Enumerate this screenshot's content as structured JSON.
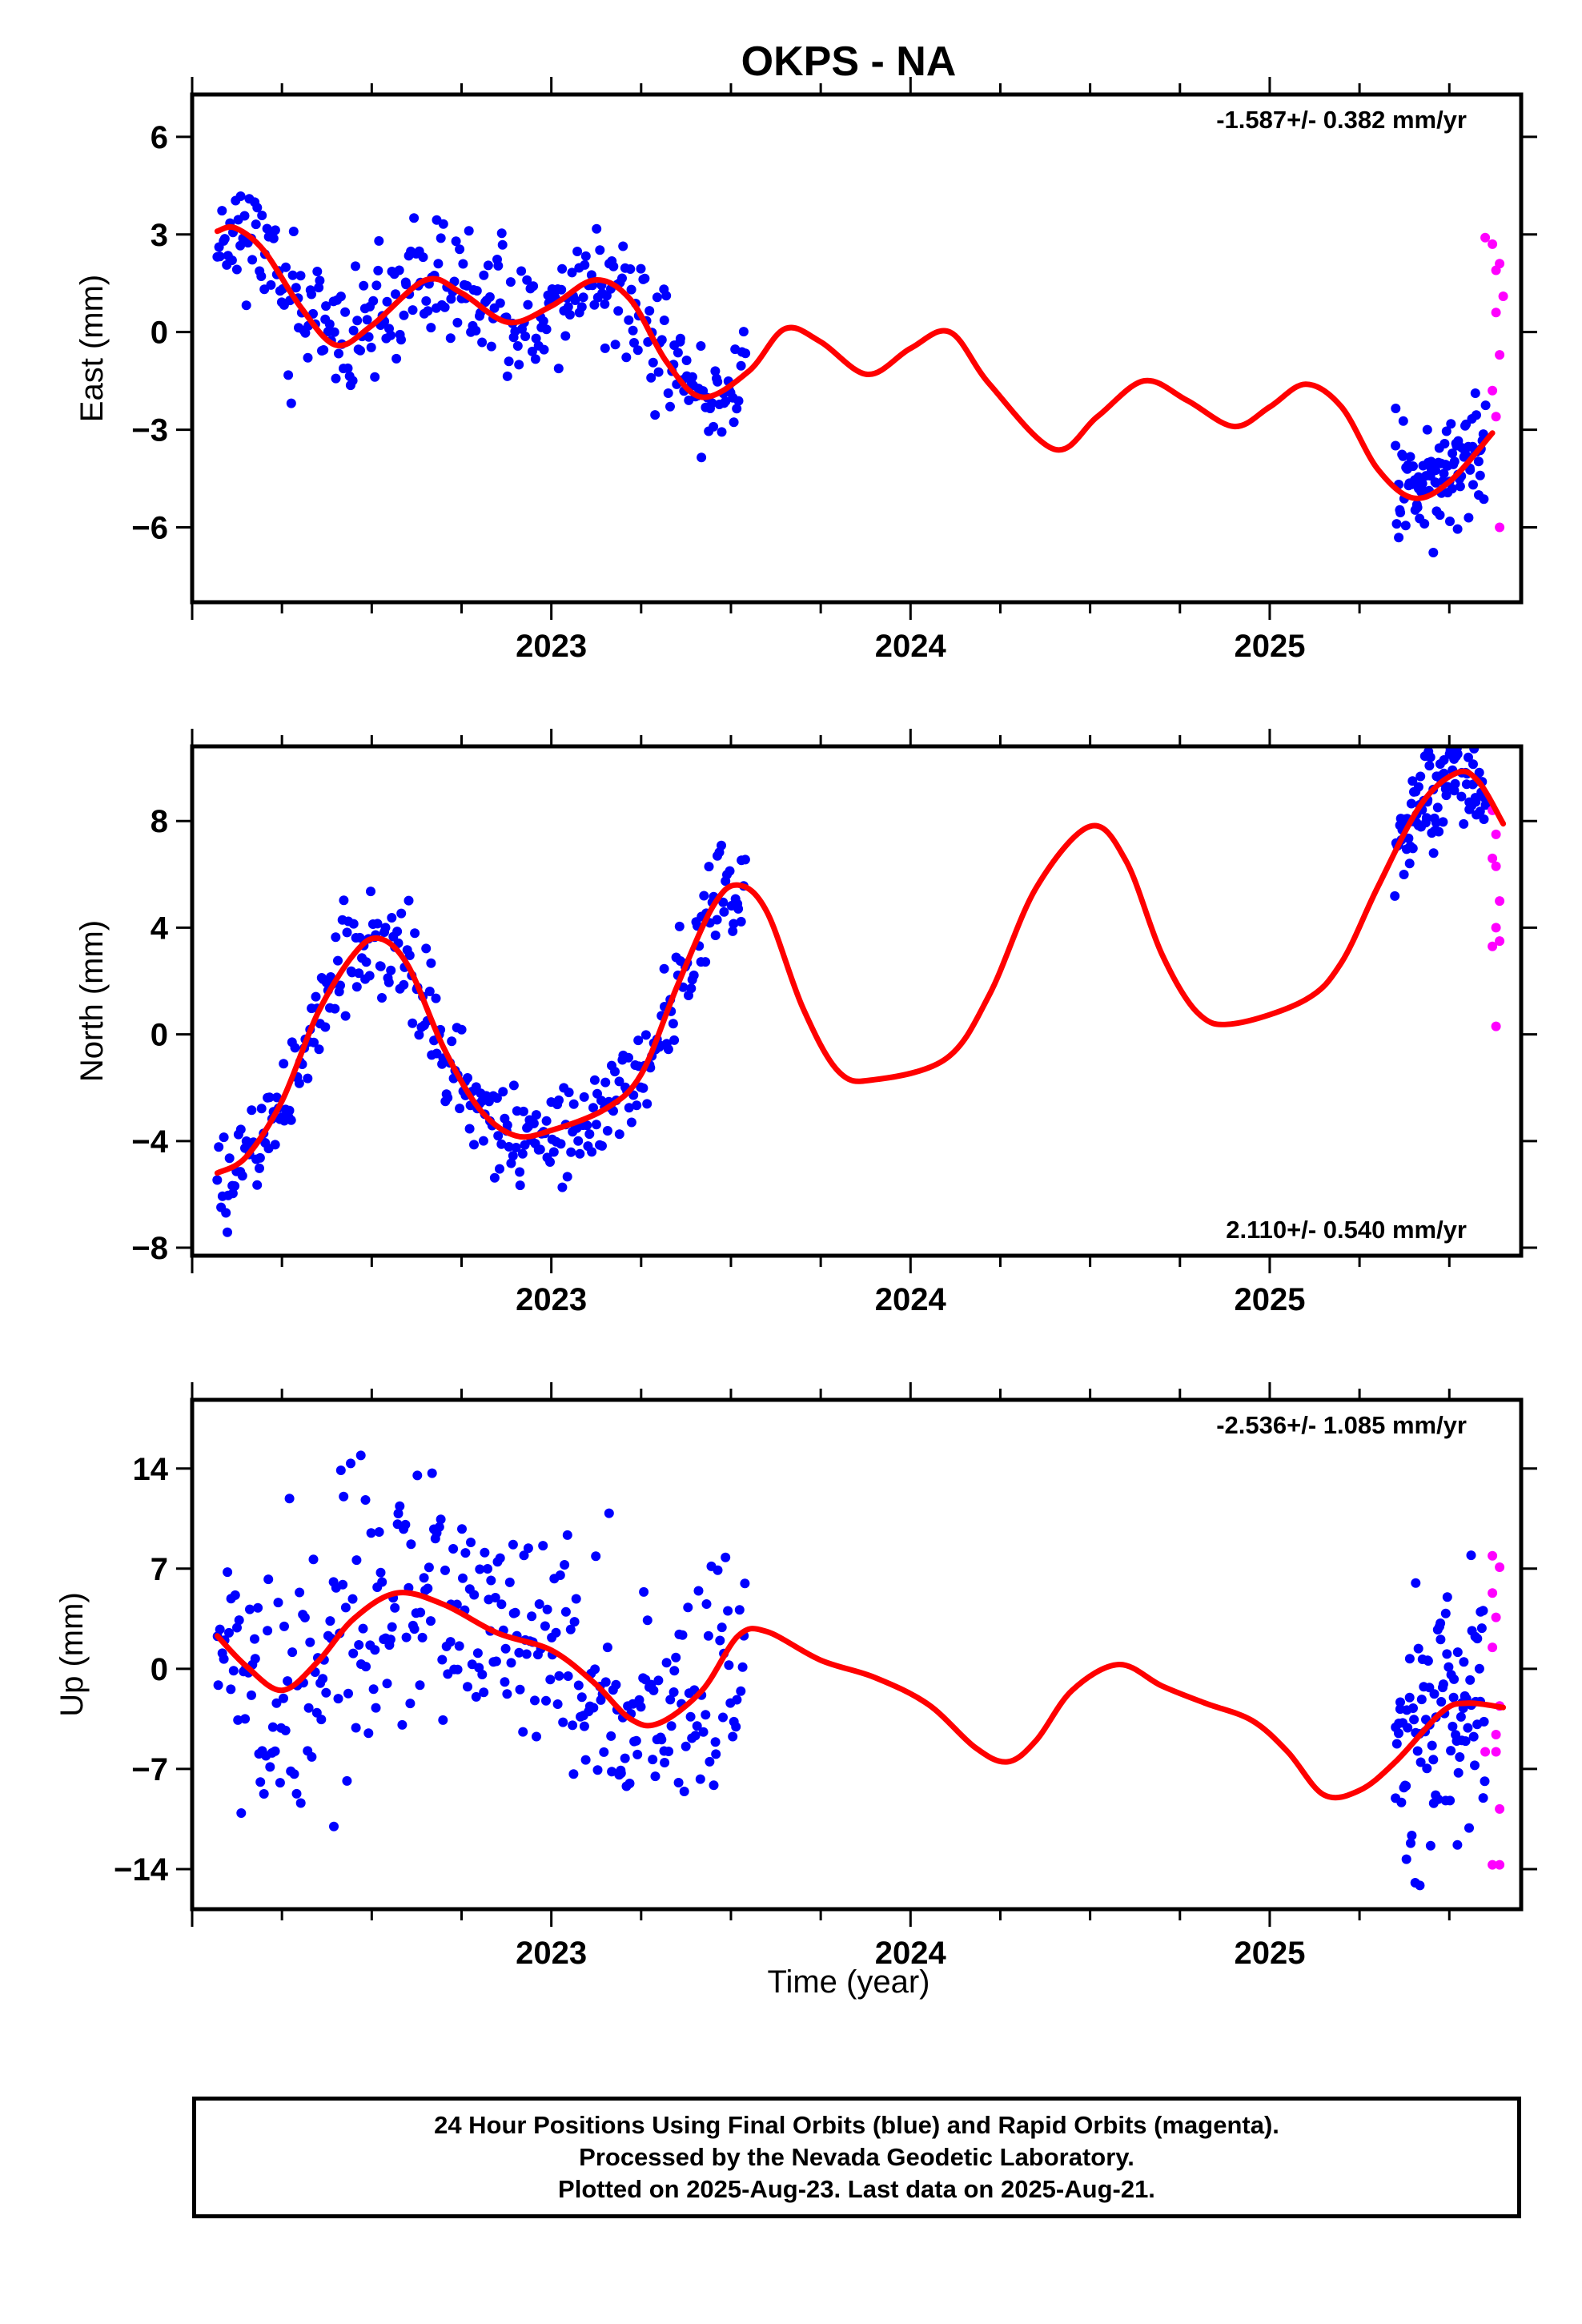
{
  "title": "OKPS - NA",
  "xlabel": "Time (year)",
  "footer": [
    "24 Hour Positions Using Final Orbits (blue) and Rapid Orbits (magenta).",
    "Processed by the Nevada Geodetic Laboratory.",
    "Plotted on 2025-Aug-23. Last data on 2025-Aug-21."
  ],
  "colors": {
    "final": "#0000ff",
    "rapid": "#ff00ff",
    "model": "#ff0000",
    "axis": "#000000"
  },
  "chart_data": [
    {
      "type": "scatter",
      "name": "East",
      "ylabel": "East (mm)",
      "rate": "-1.587+/- 0.382 mm/yr",
      "rate_position": "top-right",
      "xlim": [
        2022.0,
        2025.7
      ],
      "ylim": [
        -8.3,
        7.3
      ],
      "yticks": [
        -6,
        -3,
        0,
        3,
        6
      ],
      "xticks": [
        2023,
        2024,
        2025
      ],
      "final_segments": [
        {
          "x_start": 2022.07,
          "x_end": 2023.54,
          "n": 330,
          "spread": 0.9,
          "seed": 11
        },
        {
          "x_start": 2025.35,
          "x_end": 2025.6,
          "n": 100,
          "spread": 0.9,
          "seed": 13
        }
      ],
      "rapid_points": [
        {
          "x": 2025.6,
          "y": 2.9
        },
        {
          "x": 2025.62,
          "y": 2.7
        },
        {
          "x": 2025.63,
          "y": 1.9
        },
        {
          "x": 2025.64,
          "y": 2.1
        },
        {
          "x": 2025.65,
          "y": 1.1
        },
        {
          "x": 2025.63,
          "y": 0.6
        },
        {
          "x": 2025.64,
          "y": -0.7
        },
        {
          "x": 2025.62,
          "y": -1.8
        },
        {
          "x": 2025.63,
          "y": -2.6
        },
        {
          "x": 2025.64,
          "y": -6.0
        }
      ],
      "model": [
        {
          "x": 2022.07,
          "y": 3.1
        },
        {
          "x": 2022.12,
          "y": 3.2
        },
        {
          "x": 2022.2,
          "y": 2.5
        },
        {
          "x": 2022.3,
          "y": 0.8
        },
        {
          "x": 2022.4,
          "y": -0.4
        },
        {
          "x": 2022.5,
          "y": 0.2
        },
        {
          "x": 2022.65,
          "y": 1.6
        },
        {
          "x": 2022.75,
          "y": 1.2
        },
        {
          "x": 2022.88,
          "y": 0.3
        },
        {
          "x": 2023.0,
          "y": 0.8
        },
        {
          "x": 2023.12,
          "y": 1.6
        },
        {
          "x": 2023.22,
          "y": 1.0
        },
        {
          "x": 2023.32,
          "y": -0.9
        },
        {
          "x": 2023.42,
          "y": -2.0
        },
        {
          "x": 2023.55,
          "y": -1.2
        },
        {
          "x": 2023.65,
          "y": 0.1
        },
        {
          "x": 2023.75,
          "y": -0.3
        },
        {
          "x": 2023.88,
          "y": -1.3
        },
        {
          "x": 2024.0,
          "y": -0.5
        },
        {
          "x": 2024.11,
          "y": 0.0
        },
        {
          "x": 2024.22,
          "y": -1.6
        },
        {
          "x": 2024.4,
          "y": -3.6
        },
        {
          "x": 2024.52,
          "y": -2.6
        },
        {
          "x": 2024.65,
          "y": -1.5
        },
        {
          "x": 2024.77,
          "y": -2.1
        },
        {
          "x": 2024.9,
          "y": -2.9
        },
        {
          "x": 2025.0,
          "y": -2.3
        },
        {
          "x": 2025.1,
          "y": -1.6
        },
        {
          "x": 2025.2,
          "y": -2.3
        },
        {
          "x": 2025.3,
          "y": -4.2
        },
        {
          "x": 2025.4,
          "y": -5.1
        },
        {
          "x": 2025.5,
          "y": -4.6
        },
        {
          "x": 2025.62,
          "y": -3.1
        }
      ]
    },
    {
      "type": "scatter",
      "name": "North",
      "ylabel": "North (mm)",
      "rate": "2.110+/- 0.540 mm/yr",
      "rate_position": "bottom-right",
      "xlim": [
        2022.0,
        2025.7
      ],
      "ylim": [
        -8.3,
        10.8
      ],
      "yticks": [
        -8,
        -4,
        0,
        4,
        8
      ],
      "xticks": [
        2023,
        2024,
        2025
      ],
      "final_segments": [
        {
          "x_start": 2022.07,
          "x_end": 2023.54,
          "n": 330,
          "spread": 1.0,
          "seed": 21
        },
        {
          "x_start": 2025.35,
          "x_end": 2025.6,
          "n": 100,
          "spread": 1.0,
          "seed": 23
        }
      ],
      "rapid_points": [
        {
          "x": 2025.62,
          "y": 8.4
        },
        {
          "x": 2025.63,
          "y": 7.5
        },
        {
          "x": 2025.62,
          "y": 6.6
        },
        {
          "x": 2025.63,
          "y": 6.3
        },
        {
          "x": 2025.64,
          "y": 5.0
        },
        {
          "x": 2025.63,
          "y": 4.0
        },
        {
          "x": 2025.62,
          "y": 3.3
        },
        {
          "x": 2025.64,
          "y": 3.5
        },
        {
          "x": 2025.63,
          "y": 0.3
        }
      ],
      "model": [
        {
          "x": 2022.07,
          "y": -5.2
        },
        {
          "x": 2022.15,
          "y": -4.6
        },
        {
          "x": 2022.25,
          "y": -2.5
        },
        {
          "x": 2022.35,
          "y": 0.8
        },
        {
          "x": 2022.45,
          "y": 3.0
        },
        {
          "x": 2022.52,
          "y": 3.6
        },
        {
          "x": 2022.6,
          "y": 2.6
        },
        {
          "x": 2022.7,
          "y": -0.5
        },
        {
          "x": 2022.8,
          "y": -2.8
        },
        {
          "x": 2022.9,
          "y": -3.8
        },
        {
          "x": 2023.0,
          "y": -3.6
        },
        {
          "x": 2023.15,
          "y": -2.8
        },
        {
          "x": 2023.25,
          "y": -1.5
        },
        {
          "x": 2023.35,
          "y": 1.8
        },
        {
          "x": 2023.45,
          "y": 4.8
        },
        {
          "x": 2023.52,
          "y": 5.6
        },
        {
          "x": 2023.6,
          "y": 4.6
        },
        {
          "x": 2023.7,
          "y": 1.0
        },
        {
          "x": 2023.8,
          "y": -1.4
        },
        {
          "x": 2023.9,
          "y": -1.7
        },
        {
          "x": 2024.1,
          "y": -0.9
        },
        {
          "x": 2024.22,
          "y": 1.5
        },
        {
          "x": 2024.35,
          "y": 5.5
        },
        {
          "x": 2024.5,
          "y": 7.8
        },
        {
          "x": 2024.6,
          "y": 6.5
        },
        {
          "x": 2024.7,
          "y": 3.0
        },
        {
          "x": 2024.8,
          "y": 0.8
        },
        {
          "x": 2024.9,
          "y": 0.4
        },
        {
          "x": 2025.1,
          "y": 1.3
        },
        {
          "x": 2025.2,
          "y": 2.7
        },
        {
          "x": 2025.3,
          "y": 5.5
        },
        {
          "x": 2025.42,
          "y": 8.6
        },
        {
          "x": 2025.52,
          "y": 9.8
        },
        {
          "x": 2025.58,
          "y": 9.5
        },
        {
          "x": 2025.65,
          "y": 7.9
        }
      ]
    },
    {
      "type": "scatter",
      "name": "Up",
      "ylabel": "Up (mm)",
      "rate": "-2.536+/- 1.085 mm/yr",
      "rate_position": "top-right",
      "xlim": [
        2022.0,
        2025.7
      ],
      "ylim": [
        -16.8,
        18.8
      ],
      "yticks": [
        -14,
        -7,
        0,
        7,
        14
      ],
      "xticks": [
        2023,
        2024,
        2025
      ],
      "final_segments": [
        {
          "x_start": 2022.07,
          "x_end": 2023.54,
          "n": 330,
          "spread": 4.5,
          "seed": 31
        },
        {
          "x_start": 2025.35,
          "x_end": 2025.6,
          "n": 100,
          "spread": 4.5,
          "seed": 33
        }
      ],
      "rapid_points": [
        {
          "x": 2025.62,
          "y": 7.9
        },
        {
          "x": 2025.64,
          "y": 7.1
        },
        {
          "x": 2025.62,
          "y": 5.3
        },
        {
          "x": 2025.63,
          "y": 3.6
        },
        {
          "x": 2025.62,
          "y": 1.5
        },
        {
          "x": 2025.64,
          "y": -2.6
        },
        {
          "x": 2025.63,
          "y": -4.6
        },
        {
          "x": 2025.6,
          "y": -5.8
        },
        {
          "x": 2025.63,
          "y": -5.8
        },
        {
          "x": 2025.64,
          "y": -9.8
        },
        {
          "x": 2025.62,
          "y": -13.7
        },
        {
          "x": 2025.64,
          "y": -13.7
        }
      ],
      "model": [
        {
          "x": 2022.07,
          "y": 2.3
        },
        {
          "x": 2022.15,
          "y": 0.2
        },
        {
          "x": 2022.25,
          "y": -1.5
        },
        {
          "x": 2022.35,
          "y": 0.5
        },
        {
          "x": 2022.45,
          "y": 3.5
        },
        {
          "x": 2022.57,
          "y": 5.3
        },
        {
          "x": 2022.7,
          "y": 4.5
        },
        {
          "x": 2022.85,
          "y": 2.5
        },
        {
          "x": 2023.0,
          "y": 1.3
        },
        {
          "x": 2023.12,
          "y": -1.0
        },
        {
          "x": 2023.22,
          "y": -3.5
        },
        {
          "x": 2023.3,
          "y": -3.8
        },
        {
          "x": 2023.42,
          "y": -1.5
        },
        {
          "x": 2023.52,
          "y": 2.3
        },
        {
          "x": 2023.6,
          "y": 2.6
        },
        {
          "x": 2023.75,
          "y": 0.6
        },
        {
          "x": 2023.9,
          "y": -0.6
        },
        {
          "x": 2024.05,
          "y": -2.5
        },
        {
          "x": 2024.18,
          "y": -5.5
        },
        {
          "x": 2024.27,
          "y": -6.5
        },
        {
          "x": 2024.35,
          "y": -5.0
        },
        {
          "x": 2024.45,
          "y": -1.5
        },
        {
          "x": 2024.58,
          "y": 0.3
        },
        {
          "x": 2024.7,
          "y": -1.2
        },
        {
          "x": 2024.82,
          "y": -2.4
        },
        {
          "x": 2024.95,
          "y": -3.6
        },
        {
          "x": 2025.05,
          "y": -5.8
        },
        {
          "x": 2025.15,
          "y": -8.8
        },
        {
          "x": 2025.25,
          "y": -8.5
        },
        {
          "x": 2025.35,
          "y": -6.5
        },
        {
          "x": 2025.48,
          "y": -3.0
        },
        {
          "x": 2025.55,
          "y": -2.4
        },
        {
          "x": 2025.65,
          "y": -2.7
        }
      ]
    }
  ]
}
